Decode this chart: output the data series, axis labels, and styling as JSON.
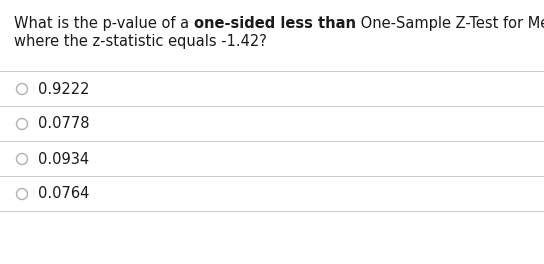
{
  "question_line1_plain_start": "What is the p-value of a ",
  "question_line1_bold": "one-sided less than",
  "question_line1_plain_end": " One-Sample Z-Test for Mean",
  "question_line2": "where the z-statistic equals -1.42?",
  "options": [
    "0.9222",
    "0.0778",
    "0.0934",
    "0.0764"
  ],
  "background_color": "#ffffff",
  "text_color": "#1a1a1a",
  "line_color": "#cccccc",
  "font_size_question": 10.5,
  "font_size_options": 10.5,
  "circle_color": "#b0b0b0",
  "fig_width": 5.44,
  "fig_height": 2.64,
  "dpi": 100
}
